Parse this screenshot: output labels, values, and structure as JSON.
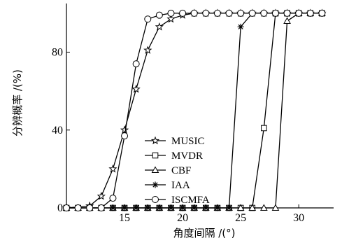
{
  "chart_data": {
    "type": "line",
    "title": "",
    "xlabel": "角度间隔 /(°)",
    "ylabel": "分辨概率 /(%)",
    "xlim": [
      10,
      33
    ],
    "ylim": [
      0,
      105
    ],
    "xticks": [
      15,
      20,
      25,
      30
    ],
    "yticks": [
      0,
      40,
      80
    ],
    "grid": false,
    "legend_position": "center-right",
    "series": [
      {
        "name": "MUSIC",
        "marker": "star",
        "x": [
          10,
          12,
          13,
          14,
          15,
          16,
          17,
          18,
          19,
          20,
          21,
          22,
          23,
          24,
          25,
          26,
          27,
          28,
          29,
          30,
          31,
          32
        ],
        "values": [
          0,
          1,
          6,
          20,
          40,
          61,
          81,
          93,
          97,
          99,
          100,
          100,
          100,
          100,
          100,
          100,
          100,
          100,
          100,
          100,
          100,
          100
        ]
      },
      {
        "name": "MVDR",
        "marker": "square",
        "x": [
          10,
          11,
          12,
          13,
          14,
          15,
          16,
          17,
          18,
          19,
          20,
          21,
          22,
          23,
          24,
          25,
          26,
          27,
          28,
          29,
          30,
          31,
          32
        ],
        "values": [
          0,
          0,
          0,
          0,
          0,
          0,
          0,
          0,
          0,
          0,
          0,
          0,
          0,
          0,
          0,
          0,
          0,
          41,
          100,
          100,
          100,
          100,
          100
        ]
      },
      {
        "name": "CBF",
        "marker": "triangle",
        "x": [
          10,
          11,
          12,
          13,
          14,
          15,
          16,
          17,
          18,
          19,
          20,
          21,
          22,
          23,
          24,
          25,
          26,
          27,
          28,
          29,
          30,
          31,
          32
        ],
        "values": [
          0,
          0,
          0,
          0,
          0,
          0,
          0,
          0,
          0,
          0,
          0,
          0,
          0,
          0,
          0,
          0,
          0,
          0,
          0,
          96,
          100,
          100,
          100
        ]
      },
      {
        "name": "IAA",
        "marker": "asterisk",
        "x": [
          10,
          11,
          12,
          13,
          14,
          15,
          16,
          17,
          18,
          19,
          20,
          21,
          22,
          23,
          24,
          25,
          26,
          27,
          28,
          29,
          30,
          31,
          32
        ],
        "values": [
          0,
          0,
          0,
          0,
          0,
          0,
          0,
          0,
          0,
          0,
          0,
          0,
          0,
          0,
          0,
          93,
          100,
          100,
          100,
          100,
          100,
          100,
          100
        ]
      },
      {
        "name": "ISCMFA",
        "marker": "circle",
        "x": [
          10,
          11,
          12,
          13,
          14,
          15,
          16,
          17,
          18,
          19,
          20,
          21,
          22,
          23,
          24,
          25,
          26,
          27,
          28,
          29,
          30,
          31,
          32
        ],
        "values": [
          0,
          0,
          0,
          0,
          5,
          37,
          74,
          97,
          99,
          100,
          100,
          100,
          100,
          100,
          100,
          100,
          100,
          100,
          100,
          100,
          100,
          100,
          100
        ]
      }
    ]
  }
}
